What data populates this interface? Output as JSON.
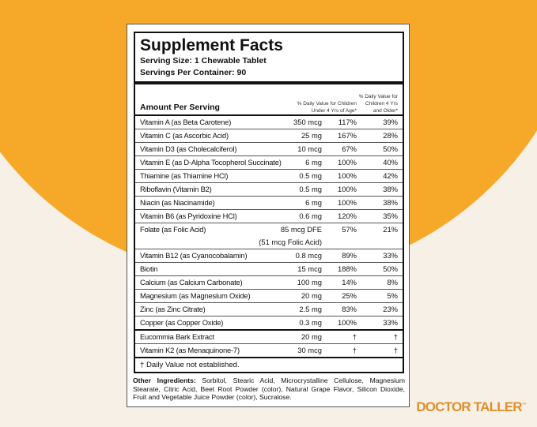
{
  "title": "Supplement Facts",
  "serving_size": "Serving Size: 1 Chewable Tablet",
  "servings_per_container": "Servings Per Container: 90",
  "header": {
    "amount": "Amount Per Serving",
    "col1": "% Daily Value for Children Under 4 Yrs of Age*",
    "col2": "% Daily Value for Children 4 Yrs and Older*"
  },
  "rows": [
    {
      "name": "Vitamin A (as Beta Carotene)",
      "amount": "350 mcg",
      "dv1": "117%",
      "dv2": "39%"
    },
    {
      "name": "Vitamin C (as Ascorbic Acid)",
      "amount": "25 mg",
      "dv1": "167%",
      "dv2": "28%"
    },
    {
      "name": "Vitamin D3 (as Cholecalciferol)",
      "amount": "10 mcg",
      "dv1": "67%",
      "dv2": "50%"
    },
    {
      "name": "Vitamin E (as D-Alpha Tocopherol Succinate)",
      "amount": "6 mg",
      "dv1": "100%",
      "dv2": "40%"
    },
    {
      "name": "Thiamine (as Thiamine HCl)",
      "amount": "0.5 mg",
      "dv1": "100%",
      "dv2": "42%"
    },
    {
      "name": "Riboflavin (Vitamin B2)",
      "amount": "0.5 mg",
      "dv1": "100%",
      "dv2": "38%"
    },
    {
      "name": "Niacin (as Niacinamide)",
      "amount": "6 mg",
      "dv1": "100%",
      "dv2": "38%"
    },
    {
      "name": "Vitamin B6 (as Pyridoxine HCl)",
      "amount": "0.6 mg",
      "dv1": "120%",
      "dv2": "35%"
    },
    {
      "name": "Folate (as Folic Acid)",
      "amount": "85 mcg DFE",
      "amount2": "(51 mcg Folic Acid)",
      "dv1": "57%",
      "dv2": "21%"
    },
    {
      "name": "Vitamin B12 (as Cyanocobalamin)",
      "amount": "0.8 mcg",
      "dv1": "89%",
      "dv2": "33%"
    },
    {
      "name": "Biotin",
      "amount": "15 mcg",
      "dv1": "188%",
      "dv2": "50%"
    },
    {
      "name": "Calcium (as Calcium Carbonate)",
      "amount": "100 mg",
      "dv1": "14%",
      "dv2": "8%"
    },
    {
      "name": "Magnesium (as Magnesium Oxide)",
      "amount": "20 mg",
      "dv1": "25%",
      "dv2": "5%"
    },
    {
      "name": "Zinc (as Zinc Citrate)",
      "amount": "2.5 mg",
      "dv1": "83%",
      "dv2": "23%"
    },
    {
      "name": "Copper (as Copper Oxide)",
      "amount": "0.3 mg",
      "dv1": "100%",
      "dv2": "33%"
    },
    {
      "name": "Eucommia Bark Extract",
      "amount": "20 mg",
      "dv1": "†",
      "dv2": "†"
    },
    {
      "name": "Vitamin K2 (as Menaquinone-7)",
      "amount": "30 mcg",
      "dv1": "†",
      "dv2": "†"
    }
  ],
  "footnote": "† Daily Value not established.",
  "other_label": "Other Ingredients:",
  "other_text": " Sorbitol, Stearic Acid, Microcrystalline Cellulose, Magnesium Stearate, Citric Acid, Beet Root Powder (color), Natural Grape Flavor, Silicon Dioxide, Fruit and Vegetable Juice Powder (color), Sucralose.",
  "brand": "DOCTOR TALLER",
  "brand_tm": "™",
  "colors": {
    "orange": "#f6a829",
    "cream": "#f6f0e7",
    "brand": "#e0902a"
  }
}
